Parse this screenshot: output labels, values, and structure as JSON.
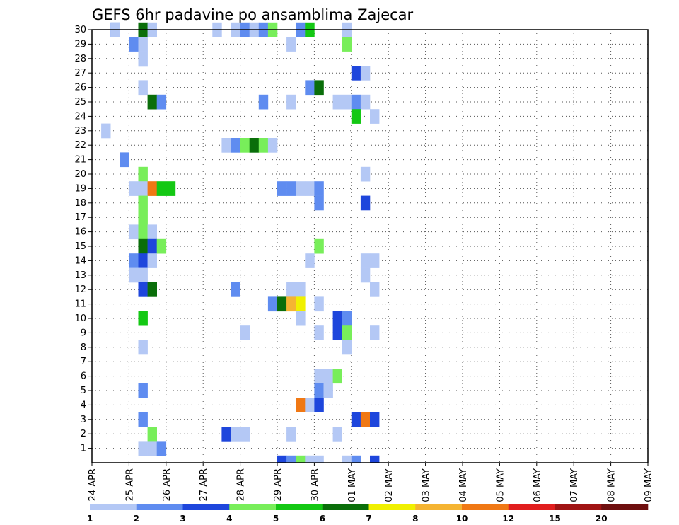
{
  "chart_data": {
    "type": "heatmap",
    "title": "GEFS 6hr padavine po ansamblima Zajecar",
    "x_tick_labels": [
      "24 APR",
      "25 APR",
      "26 APR",
      "27 APR",
      "28 APR",
      "29 APR",
      "30 APR",
      "01 MAY",
      "02 MAY",
      "03 MAY",
      "04 MAY",
      "05 MAY",
      "06 MAY",
      "07 MAY",
      "08 MAY",
      "09 MAY"
    ],
    "x_range_hours": [
      0,
      360
    ],
    "x_step_hours": 6,
    "y_tick_labels": [
      "1",
      "2",
      "3",
      "4",
      "5",
      "6",
      "7",
      "8",
      "9",
      "10",
      "11",
      "12",
      "13",
      "14",
      "15",
      "16",
      "17",
      "18",
      "19",
      "20",
      "21",
      "22",
      "23",
      "24",
      "25",
      "26",
      "27",
      "28",
      "29",
      "30"
    ],
    "y_range": [
      0,
      30
    ],
    "grid": true,
    "colorbar": {
      "position": "bottom",
      "ticks": [
        "1",
        "2",
        "3",
        "4",
        "5",
        "6",
        "7",
        "8",
        "10",
        "12",
        "15",
        "20"
      ],
      "colors": [
        "#b4c8f5",
        "#5f8cf0",
        "#1e46dc",
        "#78ee5a",
        "#14c814",
        "#0a6e0a",
        "#f0f000",
        "#f5b432",
        "#f07814",
        "#e11e1e",
        "#a01414",
        "#6e0f0f"
      ]
    },
    "cells": [
      [
        2,
        30,
        2
      ],
      [
        2,
        30,
        1
      ],
      [
        5,
        30,
        6
      ],
      [
        6,
        30,
        1
      ],
      [
        13,
        30,
        1
      ],
      [
        15,
        30,
        1
      ],
      [
        16,
        30,
        2
      ],
      [
        17,
        30,
        1
      ],
      [
        18,
        30,
        2
      ],
      [
        19,
        30,
        4
      ],
      [
        22,
        30,
        2
      ],
      [
        23,
        30,
        5
      ],
      [
        27,
        30,
        1
      ],
      [
        4,
        29,
        2
      ],
      [
        5,
        29,
        1
      ],
      [
        21,
        29,
        1
      ],
      [
        27,
        29,
        4
      ],
      [
        5,
        28,
        1
      ],
      [
        28,
        27,
        3
      ],
      [
        29,
        27,
        1
      ],
      [
        5,
        26,
        1
      ],
      [
        23,
        26,
        2
      ],
      [
        24,
        26,
        6
      ],
      [
        6,
        25,
        6
      ],
      [
        7,
        25,
        2
      ],
      [
        18,
        25,
        2
      ],
      [
        21,
        25,
        1
      ],
      [
        26,
        25,
        1
      ],
      [
        27,
        25,
        1
      ],
      [
        28,
        25,
        2
      ],
      [
        29,
        25,
        1
      ],
      [
        28,
        24,
        5
      ],
      [
        30,
        24,
        1
      ],
      [
        1,
        23,
        1
      ],
      [
        14,
        22,
        1
      ],
      [
        15,
        22,
        2
      ],
      [
        16,
        22,
        4
      ],
      [
        17,
        22,
        6
      ],
      [
        18,
        22,
        4
      ],
      [
        19,
        22,
        1
      ],
      [
        3,
        21,
        2
      ],
      [
        5,
        20,
        4
      ],
      [
        29,
        20,
        1
      ],
      [
        20,
        19,
        2
      ],
      [
        4,
        19,
        1
      ],
      [
        5,
        19,
        1
      ],
      [
        6,
        19,
        9
      ],
      [
        7,
        19,
        5
      ],
      [
        8,
        19,
        5
      ],
      [
        21,
        19,
        2
      ],
      [
        22,
        19,
        1
      ],
      [
        23,
        19,
        1
      ],
      [
        24,
        19,
        2
      ],
      [
        5,
        18,
        4
      ],
      [
        24,
        18,
        2
      ],
      [
        29,
        18,
        3
      ],
      [
        5,
        17,
        4
      ],
      [
        4,
        16,
        1
      ],
      [
        5,
        16,
        4
      ],
      [
        6,
        16,
        1
      ],
      [
        5,
        15,
        6
      ],
      [
        6,
        15,
        3
      ],
      [
        7,
        15,
        4
      ],
      [
        24,
        15,
        4
      ],
      [
        4,
        14,
        2
      ],
      [
        5,
        14,
        3
      ],
      [
        6,
        14,
        1
      ],
      [
        23,
        14,
        1
      ],
      [
        29,
        14,
        1
      ],
      [
        30,
        14,
        1
      ],
      [
        4,
        13,
        1
      ],
      [
        5,
        13,
        1
      ],
      [
        29,
        13,
        1
      ],
      [
        5,
        12,
        3
      ],
      [
        6,
        12,
        6
      ],
      [
        15,
        12,
        2
      ],
      [
        21,
        12,
        1
      ],
      [
        22,
        12,
        1
      ],
      [
        30,
        12,
        1
      ],
      [
        19,
        11,
        2
      ],
      [
        20,
        11,
        6
      ],
      [
        21,
        11,
        8
      ],
      [
        22,
        11,
        7
      ],
      [
        24,
        11,
        1
      ],
      [
        5,
        10,
        5
      ],
      [
        22,
        10,
        1
      ],
      [
        26,
        10,
        3
      ],
      [
        27,
        10,
        2
      ],
      [
        16,
        9,
        1
      ],
      [
        24,
        9,
        1
      ],
      [
        26,
        9,
        3
      ],
      [
        27,
        9,
        4
      ],
      [
        30,
        9,
        1
      ],
      [
        5,
        8,
        1
      ],
      [
        27,
        8,
        1
      ],
      [
        24,
        6,
        1
      ],
      [
        25,
        6,
        1
      ],
      [
        26,
        6,
        4
      ],
      [
        5,
        5,
        2
      ],
      [
        24,
        5,
        2
      ],
      [
        25,
        5,
        1
      ],
      [
        22,
        4,
        9
      ],
      [
        23,
        4,
        1
      ],
      [
        24,
        4,
        3
      ],
      [
        5,
        3,
        2
      ],
      [
        28,
        3,
        3
      ],
      [
        29,
        3,
        9
      ],
      [
        30,
        3,
        3
      ],
      [
        6,
        2,
        4
      ],
      [
        14,
        2,
        3
      ],
      [
        15,
        2,
        1
      ],
      [
        16,
        2,
        1
      ],
      [
        21,
        2,
        1
      ],
      [
        26,
        2,
        1
      ],
      [
        5,
        1,
        1
      ],
      [
        6,
        1,
        1
      ],
      [
        7,
        1,
        2
      ]
    ],
    "bottom_row_cells": [
      [
        20,
        3
      ],
      [
        21,
        2
      ],
      [
        22,
        4
      ],
      [
        23,
        1
      ],
      [
        24,
        1
      ],
      [
        27,
        1
      ],
      [
        28,
        2
      ],
      [
        30,
        3
      ]
    ]
  }
}
